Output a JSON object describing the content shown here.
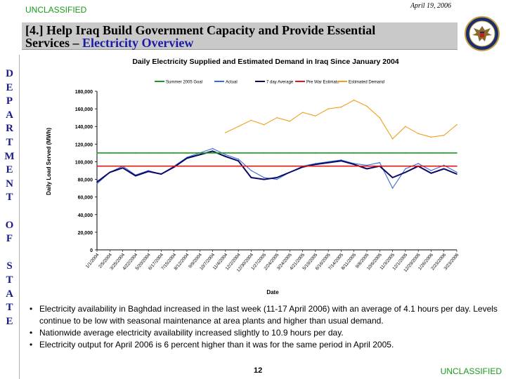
{
  "header": {
    "classification_top": "UNCLASSIFIED",
    "date": "April 19, 2006",
    "title_prefix": "[4.] Help Iraq Build Government Capacity and Provide Essential",
    "title_line2_plain": "Services – ",
    "title_line2_emphasis": "Electricity Overview"
  },
  "sidebar": {
    "letters": [
      "D",
      "E",
      "P",
      "A",
      "R",
      "T",
      "M",
      "E",
      "N",
      "T",
      "",
      "O",
      "F",
      "",
      "S",
      "T",
      "A",
      "T",
      "E"
    ]
  },
  "chart_data": {
    "type": "line",
    "title": "Daily Electricity Supplied and Estimated Demand in Iraq Since January 2004",
    "xlabel": "Date",
    "ylabel": "Daily Load Served (MWh)",
    "ylim": [
      0,
      180000
    ],
    "yticks": [
      0,
      20000,
      40000,
      60000,
      80000,
      100000,
      120000,
      140000,
      160000,
      180000
    ],
    "ytick_labels": [
      "0",
      "20,000",
      "40,000",
      "60,000",
      "80,000",
      "100,000",
      "120,000",
      "140,000",
      "160,000",
      "180,000"
    ],
    "categories": [
      "1/1/2004",
      "2/5/2004",
      "3/25/2004",
      "4/22/2004",
      "5/20/2004",
      "6/17/2004",
      "7/15/2004",
      "8/12/2004",
      "9/9/2004",
      "10/7/2004",
      "11/4/2004",
      "12/2/2004",
      "12/30/2004",
      "1/27/2005",
      "2/24/2005",
      "3/24/2005",
      "4/21/2005",
      "5/19/2005",
      "6/16/2005",
      "7/14/2005",
      "8/11/2005",
      "9/8/2005",
      "10/6/2005",
      "11/3/2005",
      "12/1/2005",
      "12/29/2005",
      "1/26/2006",
      "2/23/2006",
      "3/23/2006"
    ],
    "legend": [
      "Summer 2005 Goal",
      "Actual",
      "7 day Average",
      "Pre War Estimate",
      "Estimated Demand"
    ],
    "series": [
      {
        "name": "Summer 2005 Goal",
        "color": "#1a9a1a",
        "values": [
          110000,
          110000,
          110000,
          110000,
          110000,
          110000,
          110000,
          110000,
          110000,
          110000,
          110000,
          110000,
          110000,
          110000,
          110000,
          110000,
          110000,
          110000,
          110000,
          110000,
          110000,
          110000,
          110000,
          110000,
          110000,
          110000,
          110000,
          110000,
          110000
        ]
      },
      {
        "name": "Pre War Estimate",
        "color": "#e01818",
        "values": [
          95000,
          95000,
          95000,
          95000,
          95000,
          95000,
          95000,
          95000,
          95000,
          95000,
          95000,
          95000,
          95000,
          95000,
          95000,
          95000,
          95000,
          95000,
          95000,
          95000,
          95000,
          95000,
          95000,
          95000,
          95000,
          95000,
          95000,
          95000,
          95000
        ]
      },
      {
        "name": "Estimated Demand",
        "color": "#f0a020",
        "values": [
          null,
          null,
          null,
          null,
          null,
          null,
          null,
          null,
          null,
          null,
          133000,
          140000,
          147000,
          142000,
          150000,
          146000,
          156000,
          152000,
          160000,
          162000,
          170000,
          163000,
          150000,
          126000,
          140000,
          132000,
          128000,
          130000,
          142000
        ]
      },
      {
        "name": "Actual",
        "color": "#3a6ad8",
        "values": [
          75000,
          88000,
          95000,
          85000,
          90000,
          86000,
          95000,
          105000,
          110000,
          115000,
          108000,
          103000,
          90000,
          82000,
          80000,
          88000,
          95000,
          98000,
          100000,
          102000,
          98000,
          96000,
          99000,
          70000,
          92000,
          98000,
          90000,
          96000,
          88000
        ]
      },
      {
        "name": "7 day Average",
        "color": "#0a0a66",
        "values": [
          77000,
          88000,
          93000,
          84000,
          89000,
          86000,
          94000,
          104000,
          108000,
          112000,
          106000,
          101000,
          82000,
          80000,
          82000,
          88000,
          94000,
          97000,
          99000,
          101000,
          97000,
          92000,
          95000,
          82000,
          88000,
          95000,
          87000,
          92000,
          86000
        ]
      }
    ]
  },
  "bullets": [
    "Electricity availability in Baghdad increased in the last week (11-17 April 2006) with an average of 4.1 hours per day.  Levels continue to be low with seasonal maintenance at area plants and higher than usual demand.",
    "Nationwide average electricity availability increased slightly to 10.9 hours per day.",
    "Electricity output for April 2006 is 6 percent higher than it was for the same period in April 2005."
  ],
  "footer": {
    "page_number": "12",
    "classification_bottom": "UNCLASSIFIED"
  }
}
